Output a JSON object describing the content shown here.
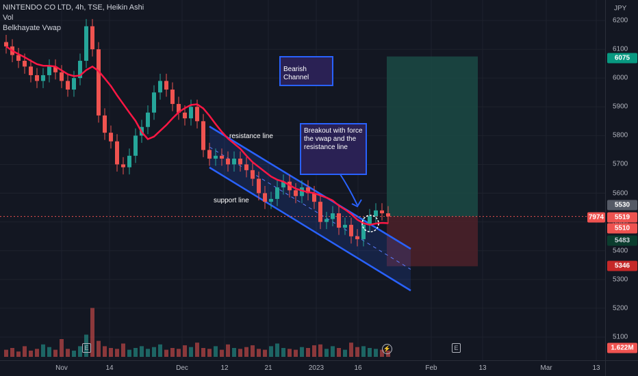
{
  "legend": {
    "symbol_line": "NINTENDO CO LTD, 4h, TSE, Heikin Ashi",
    "volume_label": "Vol",
    "vwap_label": "Belkhayate Vwap"
  },
  "price_axis": {
    "unit": "JPY",
    "ticks": [
      "6200",
      "6100",
      "6000",
      "5900",
      "5800",
      "5700",
      "5600",
      "5500",
      "5400",
      "5300",
      "5200",
      "5100"
    ],
    "tags": {
      "target": "6075",
      "upper": "5530",
      "last": "5519",
      "mid": "5510",
      "vwap": "5483",
      "stop": "5346",
      "volume": "1.622M"
    },
    "countdown_tag": "7974"
  },
  "time_axis": {
    "ticks": [
      "Nov",
      "14",
      "Dec",
      "12",
      "21",
      "2023",
      "16",
      "Feb",
      "13",
      "Mar",
      "13"
    ]
  },
  "annotations": {
    "bearish_channel": "Bearish Channel",
    "breakout": "Breakout with force the vwap and the resistance line",
    "resistance_line": "resistance line",
    "support_line": "support line"
  },
  "icons": {
    "earnings_1": "E",
    "earnings_2": "E",
    "flash": "⚡"
  },
  "colors": {
    "background": "#131722",
    "up_candle": "#26a69a",
    "down_candle": "#ef5350",
    "vwap": "#ff1744",
    "channel": "#2962ff",
    "target_zone": "#1b4a44",
    "stop_zone": "#4a2029"
  },
  "chart_data": {
    "type": "candlestick",
    "title": "NINTENDO CO LTD, 4h, TSE, Heikin Ashi",
    "ylabel": "JPY",
    "ylim": [
      5050,
      6250
    ],
    "last_price": 5519,
    "position": {
      "entry": 5519,
      "target": 6075,
      "stop": 5346
    },
    "volume_last": "1.622M",
    "approx_closes": [
      6110,
      6080,
      6060,
      6040,
      6010,
      5990,
      6010,
      6040,
      6020,
      5990,
      5960,
      6000,
      6060,
      6180,
      6100,
      5870,
      5810,
      5780,
      5700,
      5690,
      5730,
      5800,
      5830,
      5880,
      5950,
      5990,
      5960,
      5910,
      5880,
      5860,
      5900,
      5850,
      5750,
      5720,
      5730,
      5720,
      5700,
      5720,
      5700,
      5680,
      5650,
      5600,
      5570,
      5580,
      5620,
      5640,
      5610,
      5590,
      5620,
      5600,
      5570,
      5500,
      5510,
      5530,
      5480,
      5490,
      5450,
      5440,
      5490,
      5520,
      5540,
      5530,
      5519
    ]
  }
}
